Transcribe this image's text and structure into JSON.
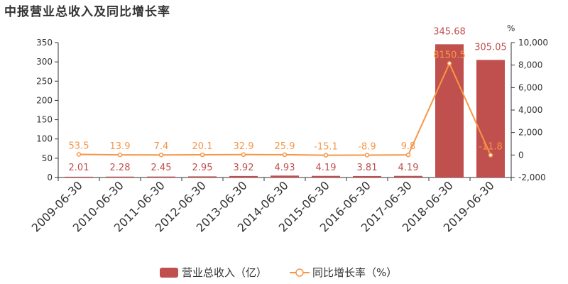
{
  "title": "中报营业总收入及同比增长率",
  "chart_data": {
    "type": "bar",
    "title": "中报营业总收入及同比增长率",
    "categories": [
      "2009-06-30",
      "2010-06-30",
      "2011-06-30",
      "2012-06-30",
      "2013-06-30",
      "2014-06-30",
      "2015-06-30",
      "2016-06-30",
      "2017-06-30",
      "2018-06-30",
      "2019-06-30"
    ],
    "series": [
      {
        "name": "营业总收入（亿）",
        "type": "bar",
        "axis": "left",
        "color": "#c0504d",
        "values": [
          2.01,
          2.28,
          2.45,
          2.95,
          3.92,
          4.93,
          4.19,
          3.81,
          4.19,
          345.68,
          305.05
        ],
        "labels": [
          "2.01",
          "2.28",
          "2.45",
          "2.95",
          "3.92",
          "4.93",
          "4.19",
          "3.81",
          "4.19",
          "345.68",
          "305.05"
        ]
      },
      {
        "name": "同比增长率（%）",
        "type": "line",
        "axis": "right",
        "color": "#f79646",
        "values": [
          53.5,
          13.9,
          7.4,
          20.1,
          32.9,
          25.9,
          -15.1,
          -8.9,
          9.8,
          8150.5,
          -11.8
        ],
        "labels": [
          "53.5",
          "13.9",
          "7.4",
          "20.1",
          "32.9",
          "25.9",
          "-15.1",
          "-8.9",
          "9.8",
          "8150.5",
          "-11.8"
        ]
      }
    ],
    "left_axis": {
      "ylim": [
        0,
        350
      ],
      "ticks": [
        "0",
        "50",
        "100",
        "150",
        "200",
        "250",
        "300",
        "350"
      ],
      "tick_values": [
        0,
        50,
        100,
        150,
        200,
        250,
        300,
        350
      ]
    },
    "right_axis": {
      "unit": "%",
      "ylim": [
        -2000,
        10000
      ],
      "ticks": [
        "-2,000",
        "0",
        "2,000",
        "4,000",
        "6,000",
        "8,000",
        "10,000"
      ],
      "tick_values": [
        -2000,
        0,
        2000,
        4000,
        6000,
        8000,
        10000
      ]
    },
    "grid": false,
    "legend": "bottom-center"
  }
}
